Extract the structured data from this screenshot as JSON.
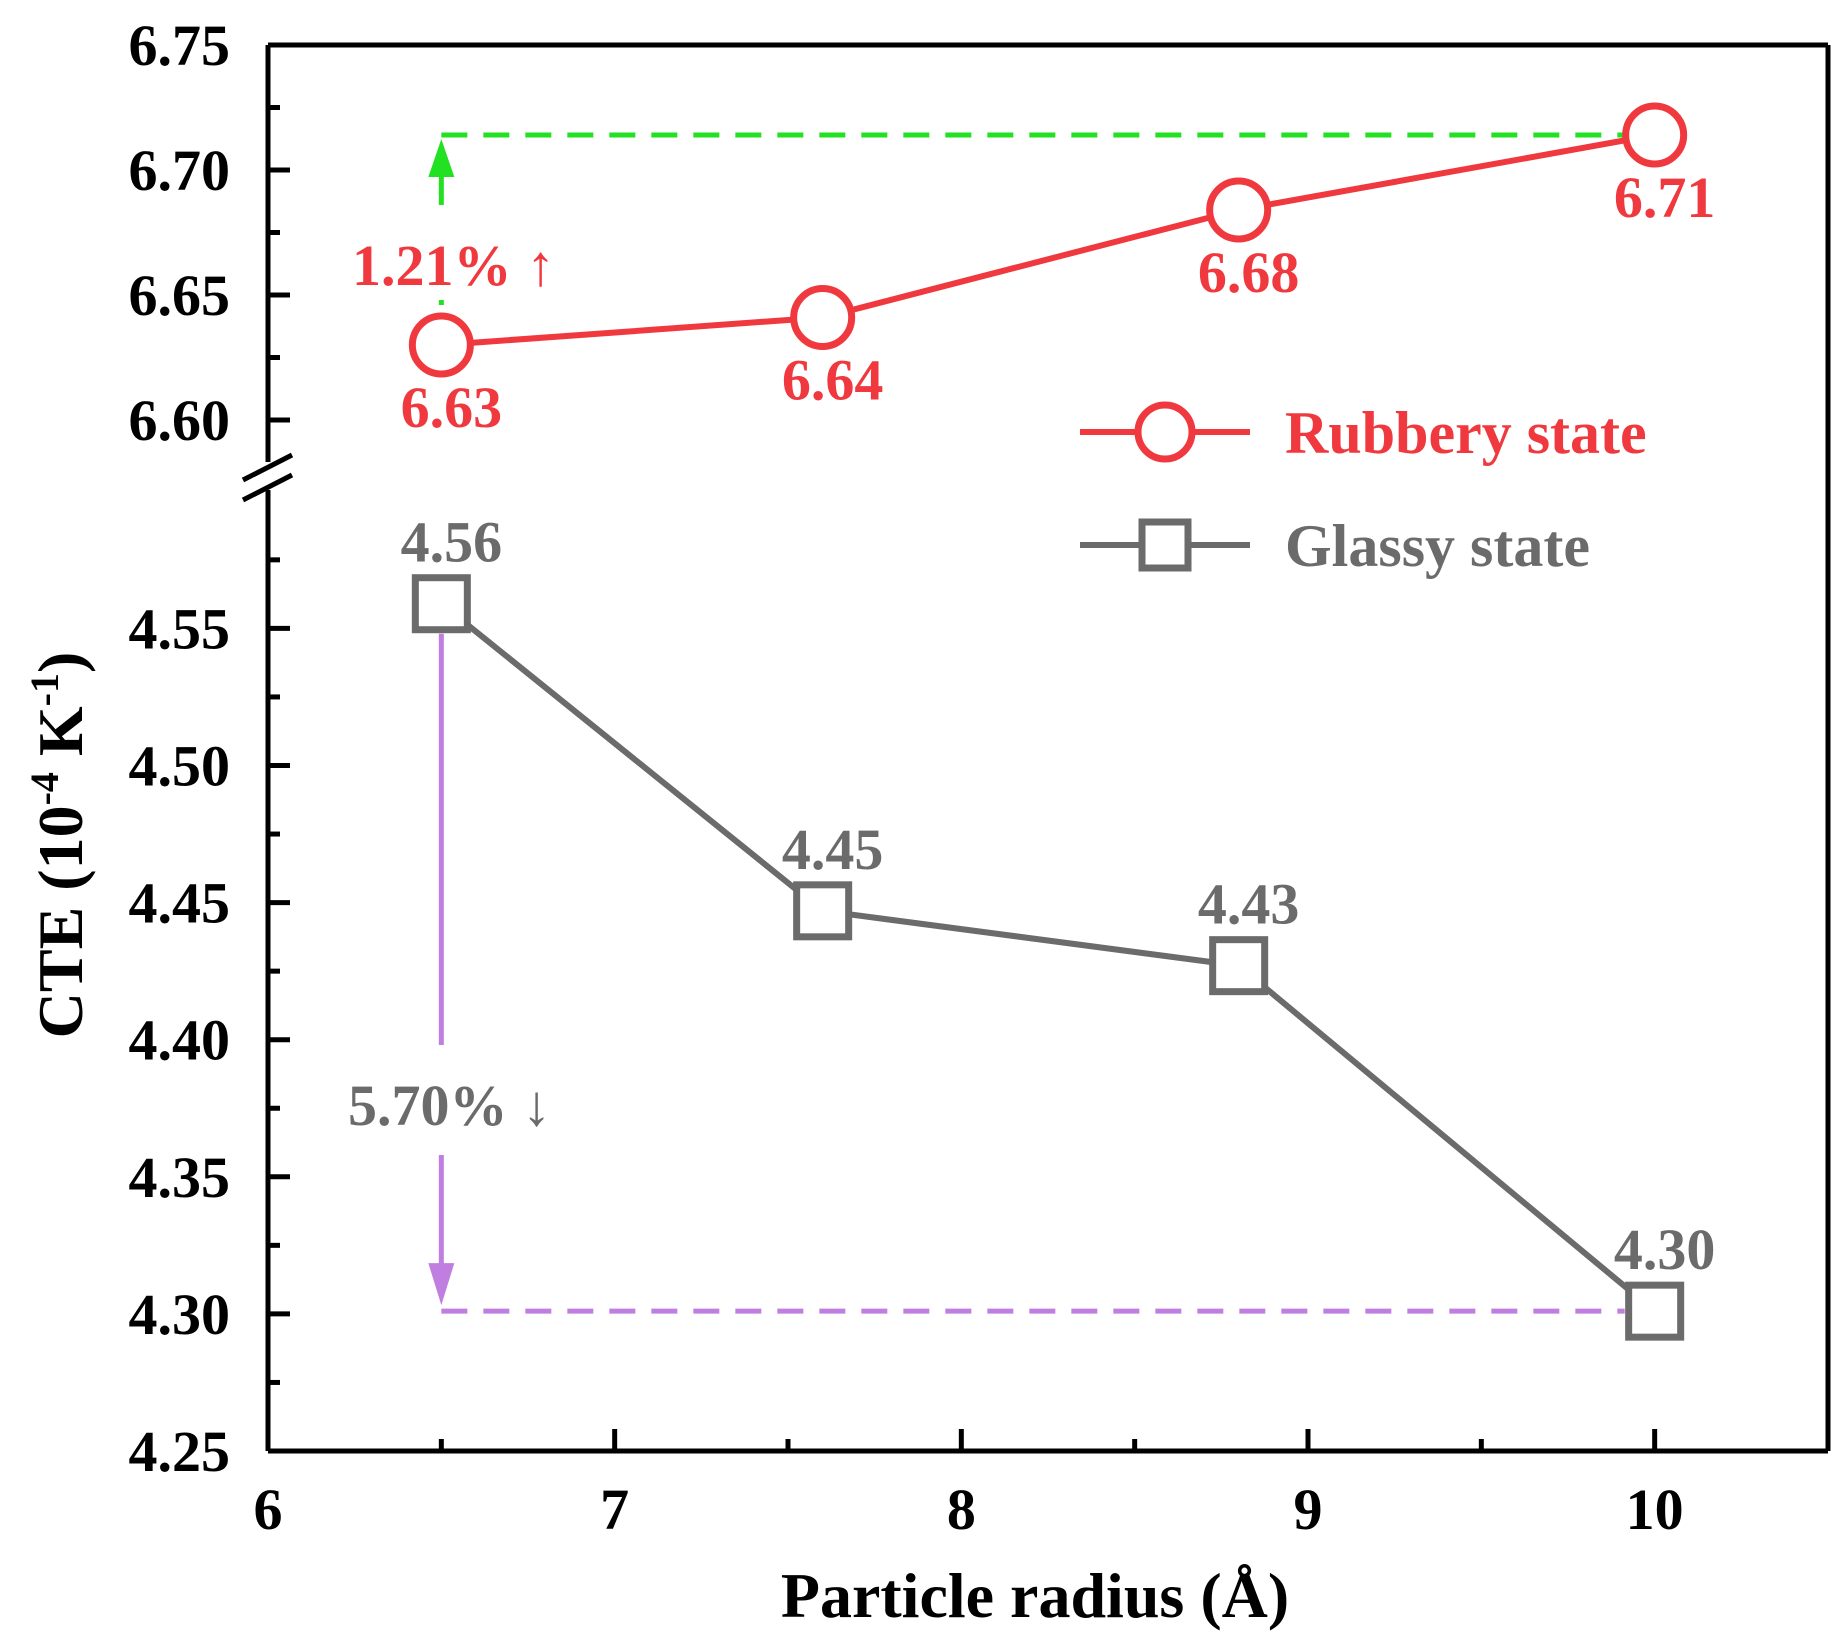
{
  "chart_data": {
    "type": "line",
    "xlabel": "Particle radius (Å)",
    "ylabel_main": "CTE (10",
    "ylabel_sup1": "-4",
    "ylabel_mid": " K",
    "ylabel_sup2": "-1",
    "ylabel_end": ")",
    "xlim": [
      6,
      10.5
    ],
    "x_ticks": [
      6,
      7,
      8,
      9,
      10
    ],
    "x_tick_labels": [
      "6",
      "7",
      "8",
      "9",
      "10"
    ],
    "axis_break": true,
    "upper_ylim": [
      6.59,
      6.75
    ],
    "upper_y_ticks": [
      6.6,
      6.65,
      6.7,
      6.75
    ],
    "upper_y_tick_labels": [
      "6.60",
      "6.65",
      "6.70",
      "6.75"
    ],
    "lower_ylim": [
      4.25,
      4.595
    ],
    "lower_y_ticks": [
      4.25,
      4.3,
      4.35,
      4.4,
      4.45,
      4.5,
      4.55
    ],
    "lower_y_tick_labels": [
      "4.25",
      "4.30",
      "4.35",
      "4.40",
      "4.45",
      "4.50",
      "4.55"
    ],
    "series": [
      {
        "name": "Rubbery state",
        "color": "#f0393e",
        "marker": "circle",
        "panel": "upper",
        "x": [
          6.5,
          7.6,
          8.8,
          10.0
        ],
        "y": [
          6.63,
          6.641,
          6.684,
          6.714
        ],
        "labels": [
          "6.63",
          "6.64",
          "6.68",
          "6.71"
        ]
      },
      {
        "name": "Glassy state",
        "color": "#6b6b6b",
        "marker": "square",
        "panel": "lower",
        "x": [
          6.5,
          7.6,
          8.8,
          10.0
        ],
        "y": [
          4.559,
          4.447,
          4.427,
          4.301
        ],
        "labels": [
          "4.56",
          "4.45",
          "4.43",
          "4.30"
        ]
      }
    ],
    "annotations": [
      {
        "text": "1.21% ↑",
        "color": "#f0393e",
        "arrow_color": "#22e022"
      },
      {
        "text": "5.70% ↓",
        "color": "#6b6b6b",
        "arrow_color": "#c07ee0"
      }
    ],
    "legend_position": "top-right"
  }
}
